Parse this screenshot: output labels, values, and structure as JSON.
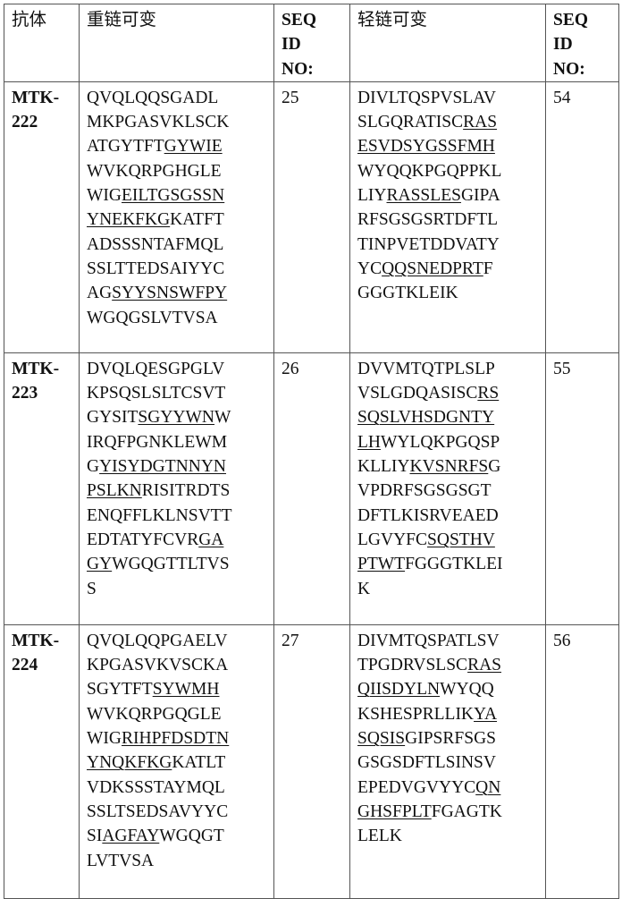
{
  "header": {
    "antibody": "抗体",
    "heavy": "重链可变",
    "seq_id_heavy": [
      "SEQ",
      "ID",
      "NO:"
    ],
    "light": "轻链可变",
    "seq_id_light": [
      "SEQ",
      "ID",
      "NO:"
    ]
  },
  "rows": [
    {
      "antibody": [
        "MTK-",
        "222"
      ],
      "heavy_seq_id": "25",
      "light_seq_id": "54",
      "heavy": [
        [
          {
            "t": "QVQLQQSGADL",
            "u": false
          }
        ],
        [
          {
            "t": "MKPGASVKLSCK",
            "u": false
          }
        ],
        [
          {
            "t": "ATGYTFT",
            "u": false
          },
          {
            "t": "GYWIE",
            "u": true
          }
        ],
        [
          {
            "t": "WVKQRPGHGLE",
            "u": false
          }
        ],
        [
          {
            "t": "WIG",
            "u": false
          },
          {
            "t": "EILTGSGSSN",
            "u": true
          }
        ],
        [
          {
            "t": "YNEKFKG",
            "u": true
          },
          {
            "t": "KATFT",
            "u": false
          }
        ],
        [
          {
            "t": "ADSSSNTAFMQL",
            "u": false
          }
        ],
        [
          {
            "t": "SSLTTEDSAIYYC",
            "u": false
          }
        ],
        [
          {
            "t": "AG",
            "u": false
          },
          {
            "t": "SYYSNSWFPY",
            "u": true
          }
        ],
        [
          {
            "t": "WGQGSLVTVSA",
            "u": false
          }
        ]
      ],
      "light": [
        [
          {
            "t": "DIVLTQSPVSLAV",
            "u": false
          }
        ],
        [
          {
            "t": "SLGQRATISC",
            "u": false
          },
          {
            "t": "RAS",
            "u": true
          }
        ],
        [
          {
            "t": "ESVDSYGSSFMH",
            "u": true
          }
        ],
        [
          {
            "t": "WYQQKPGQPPKL",
            "u": false
          }
        ],
        [
          {
            "t": "LIY",
            "u": false
          },
          {
            "t": "RASSLES",
            "u": true
          },
          {
            "t": "GIPA",
            "u": false
          }
        ],
        [
          {
            "t": "RFSGSGSRTDFTL",
            "u": false
          }
        ],
        [
          {
            "t": "TINPVETDDVATY",
            "u": false
          }
        ],
        [
          {
            "t": "YC",
            "u": false
          },
          {
            "t": "QQSNEDPRT",
            "u": true
          },
          {
            "t": "F",
            "u": false
          }
        ],
        [
          {
            "t": "GGGTKLEIK",
            "u": false
          }
        ]
      ]
    },
    {
      "antibody": [
        "MTK-",
        "223"
      ],
      "heavy_seq_id": "26",
      "light_seq_id": "55",
      "heavy": [
        [
          {
            "t": "DVQLQESGPGLV",
            "u": false
          }
        ],
        [
          {
            "t": "KPSQSLSLTCSVT",
            "u": false
          }
        ],
        [
          {
            "t": "GYSIT",
            "u": false
          },
          {
            "t": "SGYYWN",
            "u": true
          },
          {
            "t": "W",
            "u": false
          }
        ],
        [
          {
            "t": "IRQFPGNKLEWM",
            "u": false
          }
        ],
        [
          {
            "t": "G",
            "u": false
          },
          {
            "t": "YISYDGTNNYN",
            "u": true
          }
        ],
        [
          {
            "t": "PSLKN",
            "u": true
          },
          {
            "t": "RISITRDTS",
            "u": false
          }
        ],
        [
          {
            "t": "ENQFFLKLNSVTT",
            "u": false
          }
        ],
        [
          {
            "t": "EDTATYFCVR",
            "u": false
          },
          {
            "t": "GA",
            "u": true
          }
        ],
        [
          {
            "t": "GY",
            "u": true
          },
          {
            "t": "WGQGTTLTVS",
            "u": false
          }
        ],
        [
          {
            "t": "S",
            "u": false
          }
        ]
      ],
      "light": [
        [
          {
            "t": "DVVMTQTPLSLP",
            "u": false
          }
        ],
        [
          {
            "t": "VSLGDQASISC",
            "u": false
          },
          {
            "t": "RS",
            "u": true
          }
        ],
        [
          {
            "t": "SQSLVHSDGNTY",
            "u": true
          }
        ],
        [
          {
            "t": "LH",
            "u": true
          },
          {
            "t": "WYLQKPGQSP",
            "u": false
          }
        ],
        [
          {
            "t": "KLLIY",
            "u": false
          },
          {
            "t": "KVSNRFS",
            "u": true
          },
          {
            "t": "G",
            "u": false
          }
        ],
        [
          {
            "t": "VPDRFSGSGSGT",
            "u": false
          }
        ],
        [
          {
            "t": "DFTLKISRVEAED",
            "u": false
          }
        ],
        [
          {
            "t": "LGVYFC",
            "u": false
          },
          {
            "t": "SQSTHV",
            "u": true
          }
        ],
        [
          {
            "t": "PTWT",
            "u": true
          },
          {
            "t": "FGGGTKLEI",
            "u": false
          }
        ],
        [
          {
            "t": "K",
            "u": false
          }
        ]
      ]
    },
    {
      "antibody": [
        "MTK-",
        "224"
      ],
      "heavy_seq_id": "27",
      "light_seq_id": "56",
      "heavy": [
        [
          {
            "t": "QVQLQQPGAELV",
            "u": false
          }
        ],
        [
          {
            "t": "KPGASVKVSCKA",
            "u": false
          }
        ],
        [
          {
            "t": "SGYTFT",
            "u": false
          },
          {
            "t": "SYWMH",
            "u": true
          }
        ],
        [
          {
            "t": "WVKQRPGQGLE",
            "u": false
          }
        ],
        [
          {
            "t": "WIG",
            "u": false
          },
          {
            "t": "RIHPFDSDTN",
            "u": true
          }
        ],
        [
          {
            "t": "YNQKFKG",
            "u": true
          },
          {
            "t": "KATLT",
            "u": false
          }
        ],
        [
          {
            "t": "VDKSSSTAYMQL",
            "u": false
          }
        ],
        [
          {
            "t": "SSLTSEDSAVYYC",
            "u": false
          }
        ],
        [
          {
            "t": "SI",
            "u": false
          },
          {
            "t": "AGFAY",
            "u": true
          },
          {
            "t": "WGQGT",
            "u": false
          }
        ],
        [
          {
            "t": "LVTVSA",
            "u": false
          }
        ]
      ],
      "light": [
        [
          {
            "t": "DIVMTQSPATLSV",
            "u": false
          }
        ],
        [
          {
            "t": "TPGDRVSLSC",
            "u": false
          },
          {
            "t": "RAS",
            "u": true
          }
        ],
        [
          {
            "t": "QIISDYLN",
            "u": true
          },
          {
            "t": "WYQQ",
            "u": false
          }
        ],
        [
          {
            "t": "KSHESPRLLIK",
            "u": false
          },
          {
            "t": "YA",
            "u": true
          }
        ],
        [
          {
            "t": "SQSIS",
            "u": true
          },
          {
            "t": "GIPSRFSGS",
            "u": false
          }
        ],
        [
          {
            "t": "GSGSDFTLSINSV",
            "u": false
          }
        ],
        [
          {
            "t": "EPEDVGVYYC",
            "u": false
          },
          {
            "t": "QN",
            "u": true
          }
        ],
        [
          {
            "t": "GHSFPLT",
            "u": true
          },
          {
            "t": "FGAGTK",
            "u": false
          }
        ],
        [
          {
            "t": "LELK",
            "u": false
          }
        ]
      ]
    }
  ]
}
